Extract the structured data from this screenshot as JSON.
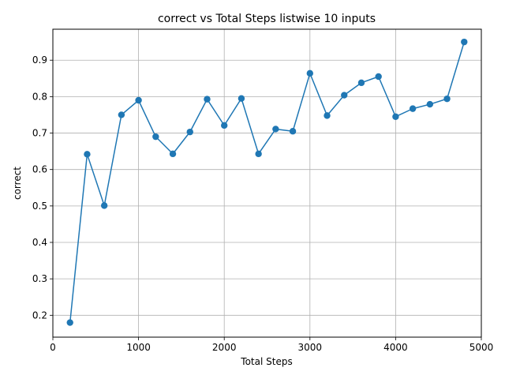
{
  "chart_data": {
    "type": "line",
    "title": "correct vs Total Steps listwise 10 inputs",
    "xlabel": "Total Steps",
    "ylabel": "correct",
    "xlim": [
      0,
      5000
    ],
    "ylim": [
      0.14,
      0.985
    ],
    "xticks": [
      0,
      1000,
      2000,
      3000,
      4000,
      5000
    ],
    "xtick_labels": [
      "0",
      "1000",
      "2000",
      "3000",
      "4000",
      "5000"
    ],
    "yticks": [
      0.2,
      0.3,
      0.4,
      0.5,
      0.6,
      0.7,
      0.8,
      0.9
    ],
    "ytick_labels": [
      "0.2",
      "0.3",
      "0.4",
      "0.5",
      "0.6",
      "0.7",
      "0.8",
      "0.9"
    ],
    "grid": true,
    "series": [
      {
        "name": "correct",
        "color": "#1f77b4",
        "marker": "circle",
        "x": [
          200,
          400,
          600,
          800,
          1000,
          1200,
          1400,
          1600,
          1800,
          2000,
          2200,
          2400,
          2600,
          2800,
          3000,
          3200,
          3400,
          3600,
          3800,
          4000,
          4200,
          4400,
          4600,
          4800
        ],
        "values": [
          0.18,
          0.642,
          0.501,
          0.75,
          0.79,
          0.69,
          0.643,
          0.703,
          0.793,
          0.721,
          0.795,
          0.643,
          0.711,
          0.705,
          0.864,
          0.748,
          0.804,
          0.838,
          0.855,
          0.745,
          0.767,
          0.779,
          0.794,
          0.95
        ]
      }
    ]
  }
}
